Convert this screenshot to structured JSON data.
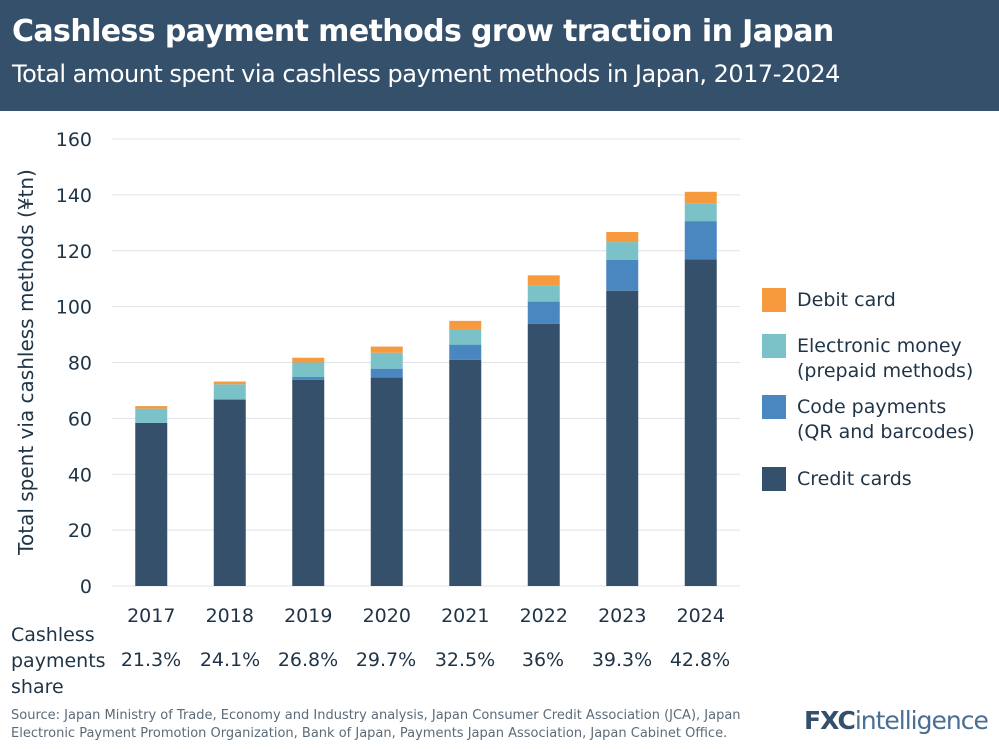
{
  "header": {
    "title": "Cashless payment methods grow traction in Japan",
    "subtitle": "Total amount spent via cashless payment methods in Japan, 2017-2024"
  },
  "chart_data": {
    "type": "bar",
    "stacked": true,
    "categories": [
      "2017",
      "2018",
      "2019",
      "2020",
      "2021",
      "2022",
      "2023",
      "2024"
    ],
    "series": [
      {
        "name": "Credit cards",
        "color": "#34506b",
        "values": [
          58.4,
          66.7,
          73.8,
          74.6,
          81.0,
          93.8,
          105.7,
          116.9
        ]
      },
      {
        "name": "Code payments\n(QR and barcodes)",
        "color": "#4a86c0",
        "values": [
          0.0,
          0.2,
          1.0,
          3.2,
          5.4,
          8.0,
          11.0,
          13.7
        ]
      },
      {
        "name": "Electronic money\n(prepaid methods)",
        "color": "#7ac2c8",
        "values": [
          5.1,
          5.3,
          5.2,
          5.7,
          5.4,
          5.8,
          6.4,
          6.2
        ]
      },
      {
        "name": "Debit card",
        "color": "#f79a3e",
        "values": [
          0.9,
          1.0,
          1.7,
          2.2,
          3.1,
          3.6,
          3.6,
          4.3
        ]
      }
    ],
    "ylabel": "Total spent via cashless methods (¥tn)",
    "xlabel": "",
    "ylim": [
      0,
      160
    ],
    "yticks": [
      0,
      20,
      40,
      60,
      80,
      100,
      120,
      140,
      160
    ],
    "grid": true,
    "legend_position": "right"
  },
  "legend": {
    "items": [
      {
        "label": "Debit card",
        "color": "#f79a3e"
      },
      {
        "label": "Electronic money\n(prepaid methods)",
        "color": "#7ac2c8"
      },
      {
        "label": "Code payments\n(QR and barcodes)",
        "color": "#4a86c0"
      },
      {
        "label": "Credit cards",
        "color": "#34506b"
      }
    ]
  },
  "share": {
    "title": "Cashless\npayments\nshare",
    "values": [
      "21.3%",
      "24.1%",
      "26.8%",
      "29.7%",
      "32.5%",
      "36%",
      "39.3%",
      "42.8%"
    ]
  },
  "footer": {
    "source": "Source: Japan Ministry of Trade, Economy and Industry analysis, Japan Consumer Credit Association (JCA), Japan Electronic Payment Promotion Organization, Bank of Japan, Payments Japan Association, Japan Cabinet Office.",
    "logo_part1": "FXC",
    "logo_part2": "intelligence"
  }
}
